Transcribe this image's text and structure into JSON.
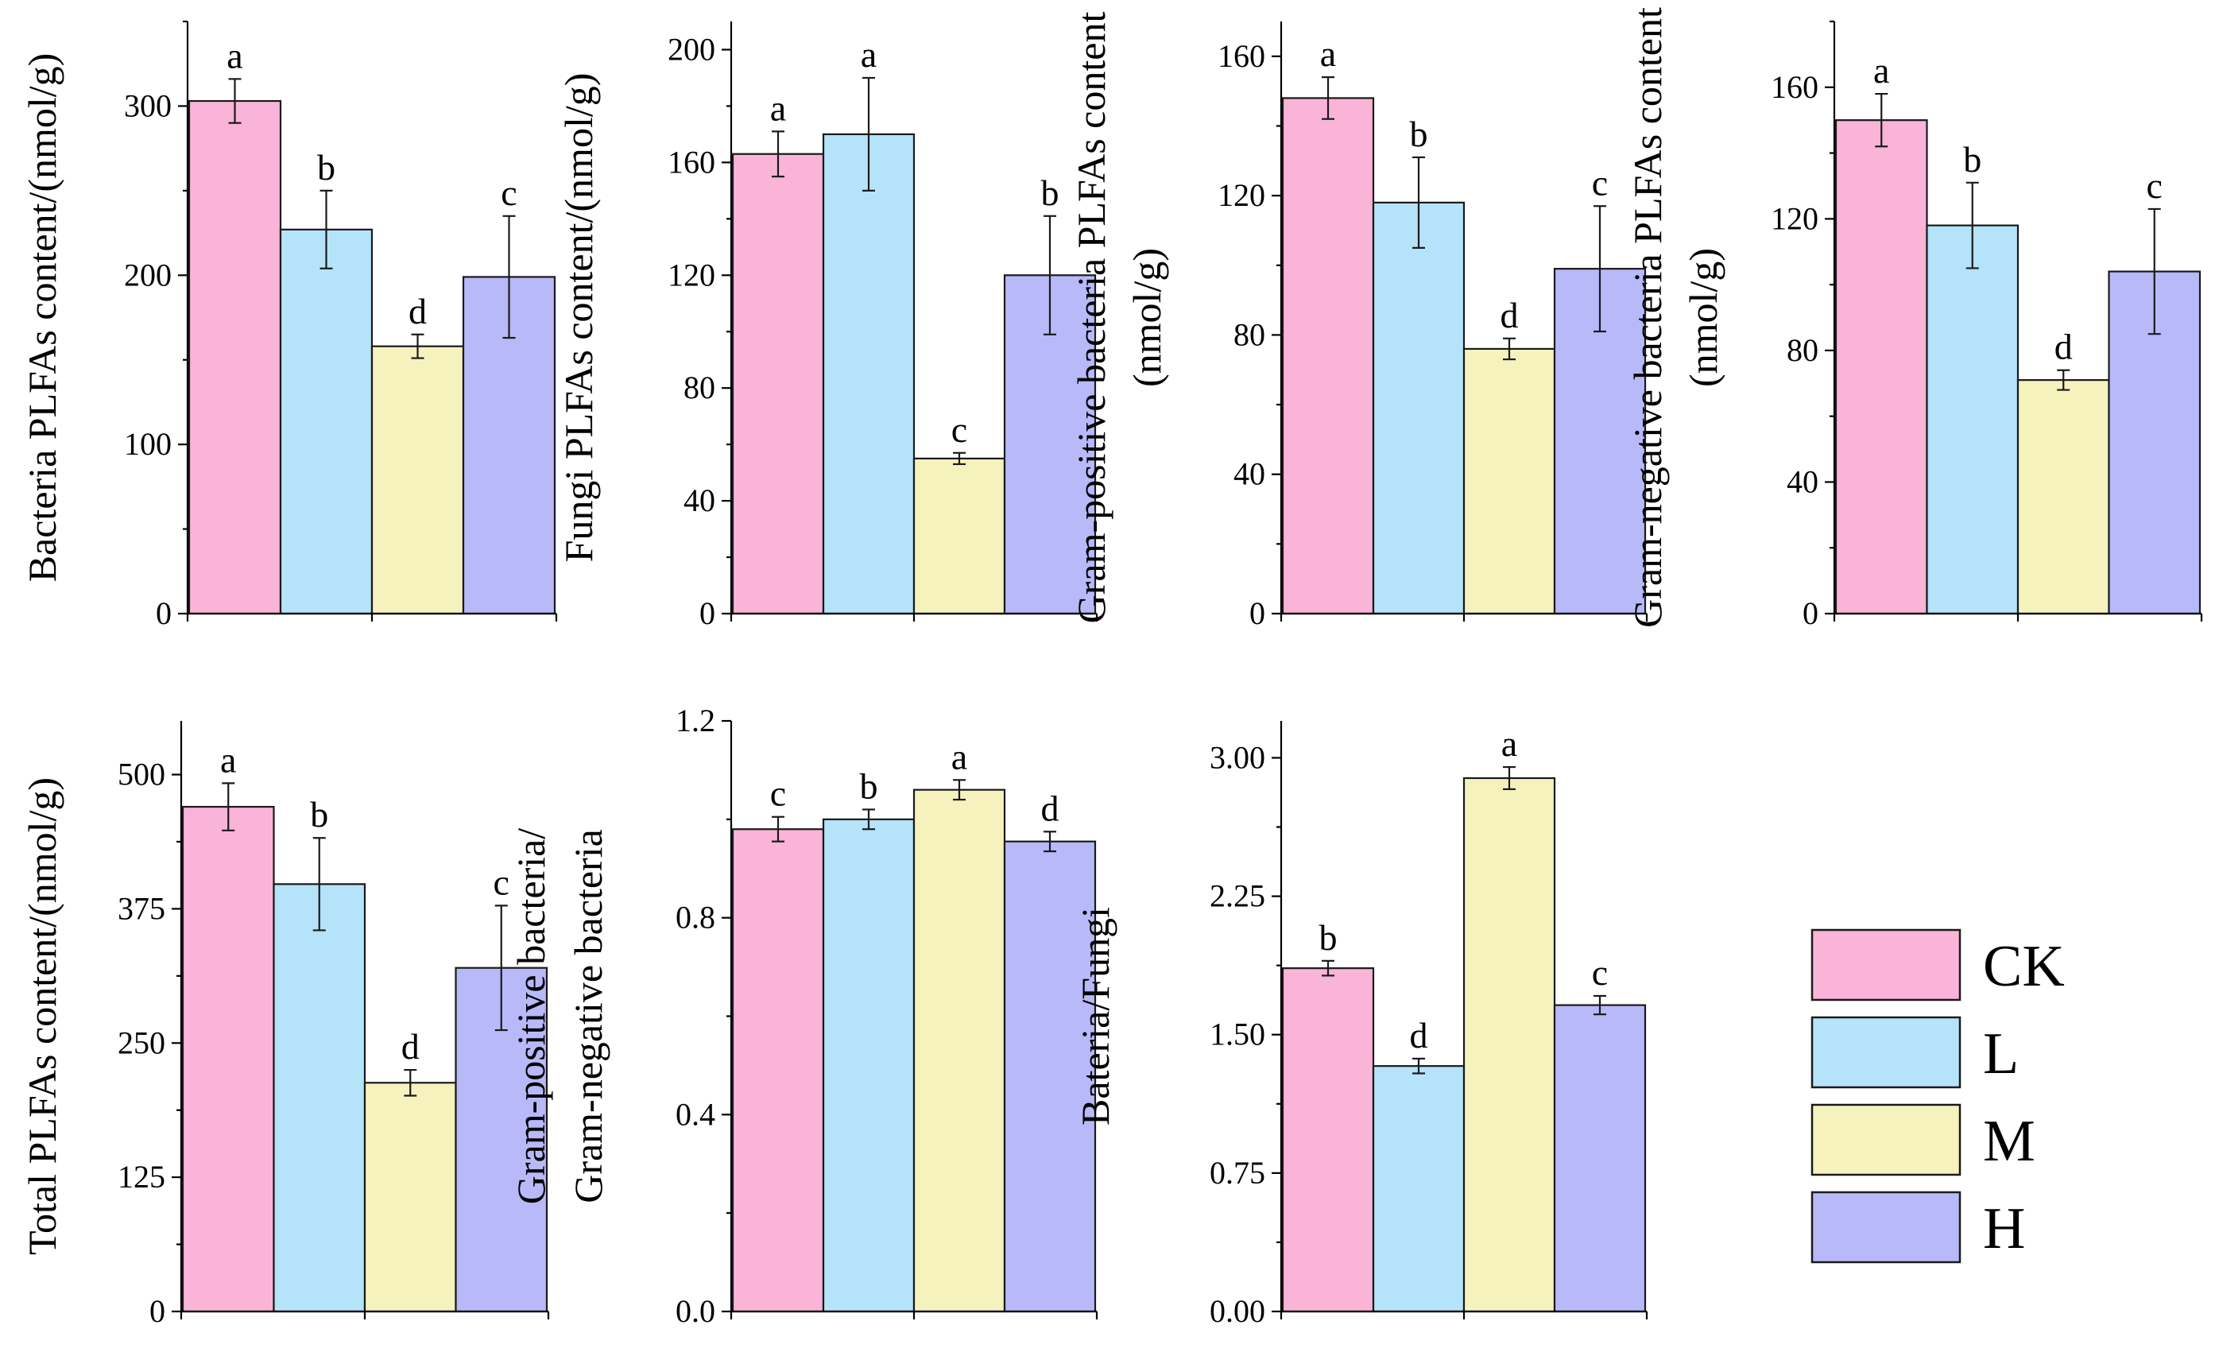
{
  "legend": {
    "items": [
      {
        "label": "CK",
        "color": "#f9b4d8"
      },
      {
        "label": "L",
        "color": "#b5e3f9"
      },
      {
        "label": "M",
        "color": "#f5f2be"
      },
      {
        "label": "H",
        "color": "#b8b9f8"
      }
    ]
  },
  "chart_data": [
    {
      "type": "bar",
      "categories": [
        "CK",
        "L",
        "M",
        "H"
      ],
      "ylabel_lines": [
        "Bacteria PLFAs content/(nmol/g)"
      ],
      "ylim": [
        0,
        350
      ],
      "yticks": [
        "0",
        "100",
        "200",
        "300"
      ],
      "values": [
        303,
        227,
        158,
        199
      ],
      "errors": [
        13,
        23,
        7,
        36
      ],
      "letters": [
        "a",
        "b",
        "d",
        "c"
      ],
      "grid": false
    },
    {
      "type": "bar",
      "categories": [
        "CK",
        "L",
        "M",
        "H"
      ],
      "ylabel_lines": [
        "Fungi PLFAs content/(nmol/g)"
      ],
      "ylim": [
        0,
        210
      ],
      "yticks": [
        "0",
        "40",
        "80",
        "120",
        "160",
        "200"
      ],
      "values": [
        163,
        170,
        55,
        120
      ],
      "errors": [
        8,
        20,
        2,
        21
      ],
      "letters": [
        "a",
        "a",
        "c",
        "b"
      ],
      "grid": false
    },
    {
      "type": "bar",
      "categories": [
        "CK",
        "L",
        "M",
        "H"
      ],
      "ylabel_lines": [
        "Gram-positive bacteria PLFAs content",
        "(nmol/g)"
      ],
      "ylim": [
        0,
        170
      ],
      "yticks": [
        "0",
        "40",
        "80",
        "120",
        "160"
      ],
      "values": [
        148,
        118,
        76,
        99
      ],
      "errors": [
        6,
        13,
        3,
        18
      ],
      "letters": [
        "a",
        "b",
        "d",
        "c"
      ],
      "grid": false
    },
    {
      "type": "bar",
      "categories": [
        "CK",
        "L",
        "M",
        "H"
      ],
      "ylabel_lines": [
        "Gram-negative bacteria PLFAs content",
        "(nmol/g)"
      ],
      "ylim": [
        0,
        180
      ],
      "yticks": [
        "0",
        "40",
        "80",
        "120",
        "160"
      ],
      "values": [
        150,
        118,
        71,
        104
      ],
      "errors": [
        8,
        13,
        3,
        19
      ],
      "letters": [
        "a",
        "b",
        "d",
        "c"
      ],
      "grid": false
    },
    {
      "type": "bar",
      "categories": [
        "CK",
        "L",
        "M",
        "H"
      ],
      "ylabel_lines": [
        "Total PLFAs content/(nmol/g)"
      ],
      "ylim": [
        0,
        550
      ],
      "yticks": [
        "0",
        "125",
        "250",
        "375",
        "500"
      ],
      "values": [
        470,
        398,
        213,
        320
      ],
      "errors": [
        22,
        43,
        12,
        58
      ],
      "letters": [
        "a",
        "b",
        "d",
        "c"
      ],
      "grid": false
    },
    {
      "type": "bar",
      "categories": [
        "CK",
        "L",
        "M",
        "H"
      ],
      "ylabel_lines": [
        "Gram-positive bacteria/",
        "Gram-negative bacteria"
      ],
      "ylim": [
        0,
        1.2
      ],
      "yticks": [
        "0.0",
        "0.4",
        "0.8",
        "1.2"
      ],
      "values": [
        0.98,
        1.0,
        1.06,
        0.955
      ],
      "errors": [
        0.025,
        0.02,
        0.02,
        0.02
      ],
      "letters": [
        "c",
        "b",
        "a",
        "d"
      ],
      "grid": false
    },
    {
      "type": "bar",
      "categories": [
        "CK",
        "L",
        "M",
        "H"
      ],
      "ylabel_lines": [
        "Bateria/Fungi"
      ],
      "ylim": [
        0,
        3.2
      ],
      "yticks": [
        "0.00",
        "0.75",
        "1.50",
        "2.25",
        "3.00"
      ],
      "values": [
        1.86,
        1.33,
        2.89,
        1.66
      ],
      "errors": [
        0.04,
        0.04,
        0.06,
        0.05
      ],
      "letters": [
        "b",
        "d",
        "a",
        "c"
      ],
      "grid": false
    }
  ]
}
